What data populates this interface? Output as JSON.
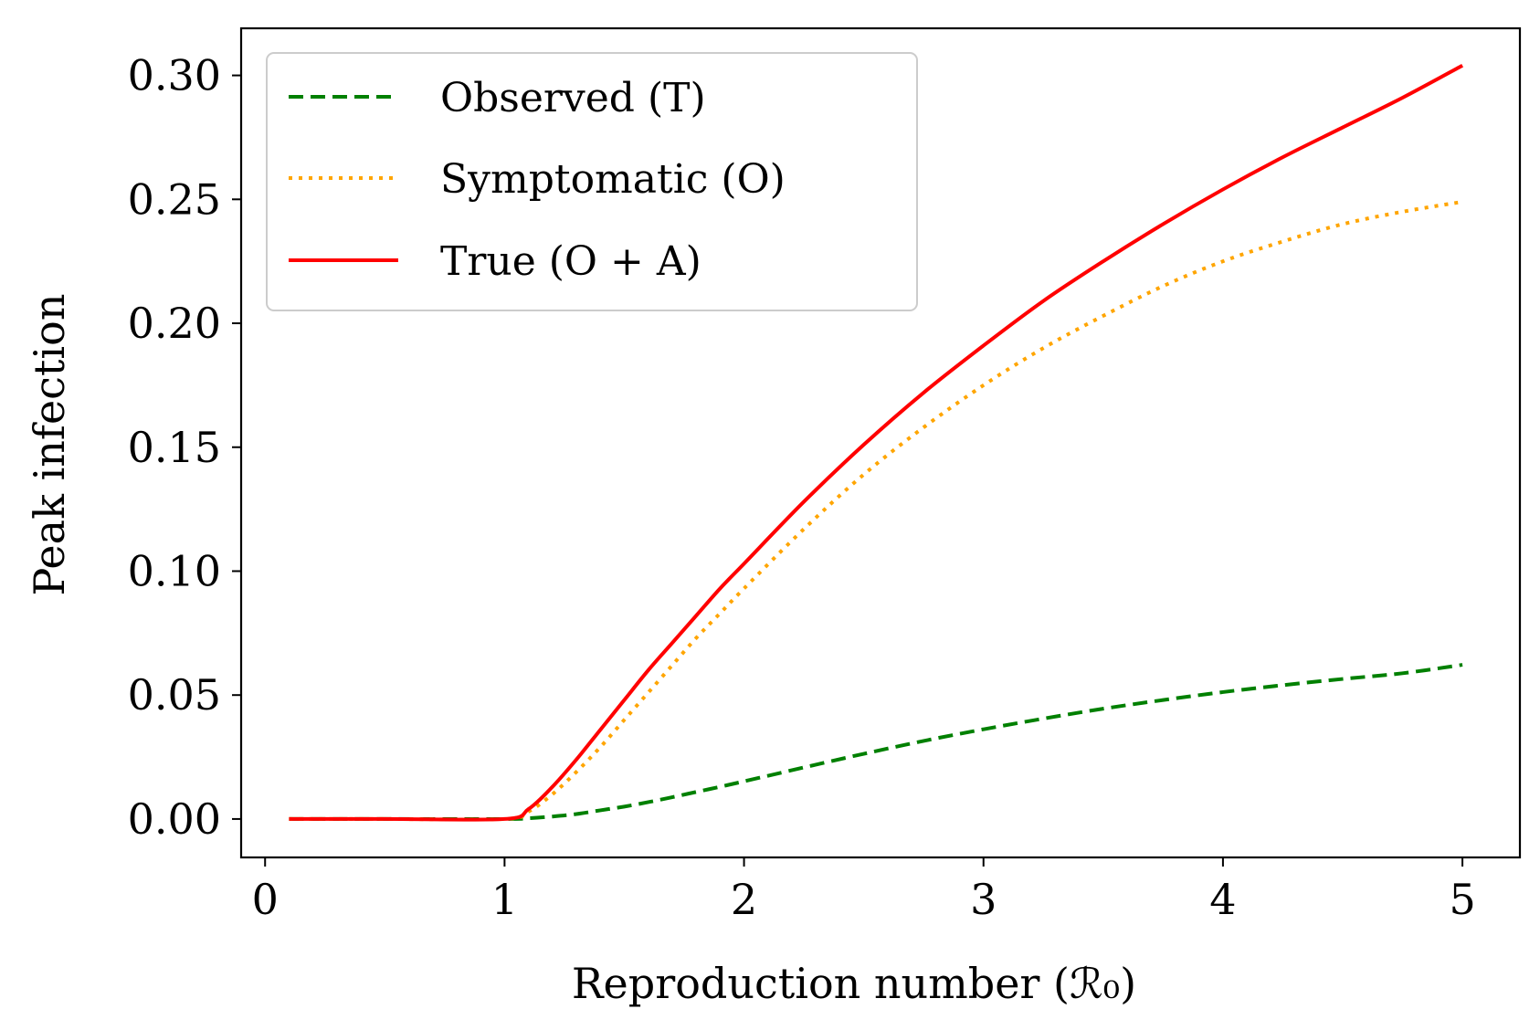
{
  "chart_data": {
    "type": "line",
    "title": "",
    "xlabel": "Reproduction number (ℛ₀)",
    "ylabel": "Peak infection",
    "xlim": [
      -0.1,
      5.24
    ],
    "ylim": [
      -0.0155,
      0.319
    ],
    "xticks": [
      0,
      1,
      2,
      3,
      4,
      5
    ],
    "xtick_labels": [
      "0",
      "1",
      "2",
      "3",
      "4",
      "5"
    ],
    "yticks": [
      0.0,
      0.05,
      0.1,
      0.15,
      0.2,
      0.25,
      0.3
    ],
    "ytick_labels": [
      "0.00",
      "0.05",
      "0.10",
      "0.15",
      "0.20",
      "0.25",
      "0.30"
    ],
    "grid": false,
    "legend_position": "top-left",
    "x": [
      0.1,
      0.5,
      1.0,
      1.1,
      1.2,
      1.3,
      1.4,
      1.5,
      1.6,
      1.7,
      1.8,
      1.9,
      2.0,
      2.25,
      2.5,
      2.75,
      3.0,
      3.25,
      3.5,
      3.75,
      4.0,
      4.25,
      4.5,
      4.75,
      5.0
    ],
    "series": [
      {
        "name": "Observed",
        "legend_label": "Observed  (T)",
        "color": "#008000",
        "style": "dashed",
        "values": [
          0.0,
          0.0,
          0.0,
          0.0003,
          0.001,
          0.002,
          0.0035,
          0.005,
          0.0068,
          0.0088,
          0.0109,
          0.013,
          0.0152,
          0.0208,
          0.0263,
          0.0315,
          0.0362,
          0.0405,
          0.0445,
          0.048,
          0.0512,
          0.054,
          0.0565,
          0.0588,
          0.0622
        ]
      },
      {
        "name": "Symptomatic",
        "legend_label": "Symptomatic (O)",
        "color": "#ffa500",
        "style": "dotted",
        "values": [
          0.0,
          0.0,
          0.0,
          0.003,
          0.01,
          0.019,
          0.029,
          0.04,
          0.051,
          0.062,
          0.073,
          0.083,
          0.093,
          0.117,
          0.139,
          0.158,
          0.175,
          0.19,
          0.203,
          0.215,
          0.225,
          0.233,
          0.24,
          0.245,
          0.249
        ]
      },
      {
        "name": "True",
        "legend_label": "True (O + A)",
        "color": "#ff0000",
        "style": "solid",
        "values": [
          0.0,
          0.0,
          0.0,
          0.004,
          0.013,
          0.024,
          0.036,
          0.048,
          0.06,
          0.071,
          0.082,
          0.093,
          0.103,
          0.128,
          0.151,
          0.172,
          0.191,
          0.209,
          0.225,
          0.24,
          0.254,
          0.267,
          0.279,
          0.291,
          0.304
        ]
      }
    ]
  }
}
